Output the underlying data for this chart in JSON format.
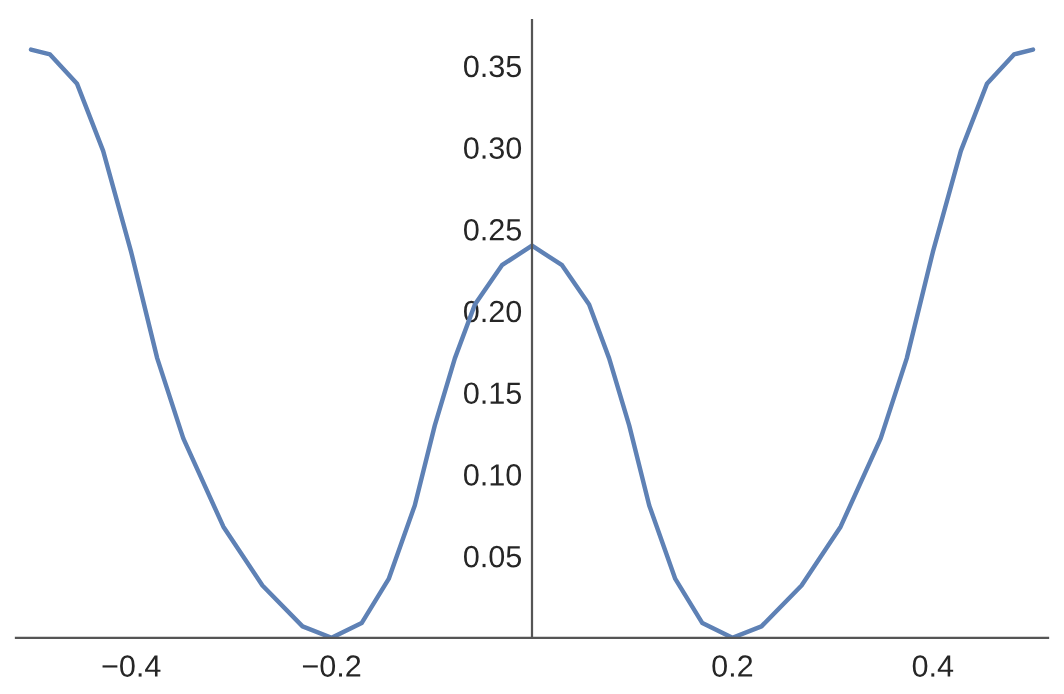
{
  "chart_data": {
    "type": "line",
    "x": [
      -0.5,
      -0.481,
      -0.454,
      -0.428,
      -0.4,
      -0.374,
      -0.348,
      -0.308,
      -0.269,
      -0.229,
      -0.2,
      -0.17,
      -0.143,
      -0.117,
      -0.097,
      -0.077,
      -0.057,
      -0.03,
      0,
      0.03,
      0.057,
      0.077,
      0.097,
      0.117,
      0.143,
      0.17,
      0.2,
      0.229,
      0.269,
      0.308,
      0.348,
      0.374,
      0.4,
      0.428,
      0.454,
      0.481,
      0.5
    ],
    "series": [
      {
        "color": "#5e81b5",
        "values": [
          0.36,
          0.357,
          0.339,
          0.298,
          0.236,
          0.171,
          0.122,
          0.068,
          0.032,
          0.007,
          0,
          0.009,
          0.036,
          0.081,
          0.13,
          0.171,
          0.204,
          0.228,
          0.24,
          0.228,
          0.204,
          0.171,
          0.13,
          0.081,
          0.036,
          0.009,
          0,
          0.007,
          0.032,
          0.068,
          0.122,
          0.171,
          0.236,
          0.298,
          0.339,
          0.357,
          0.36
        ]
      }
    ],
    "xlim": [
      -0.515,
      0.515
    ],
    "ylim": [
      0,
      0.378
    ],
    "xticks": [
      -0.4,
      -0.2,
      0.2,
      0.4
    ],
    "yticks": [
      {
        "value": 0.05,
        "label": "0.05"
      },
      {
        "value": 0.1,
        "label": "0.10"
      },
      {
        "value": 0.15,
        "label": "0.15"
      },
      {
        "value": 0.2,
        "label": "0.20"
      },
      {
        "value": 0.25,
        "label": "0.25"
      },
      {
        "value": 0.3,
        "label": "0.30"
      },
      {
        "value": 0.35,
        "label": "0.35"
      }
    ],
    "grid": false,
    "legend": false,
    "marker": "none",
    "line_style": "solid"
  }
}
